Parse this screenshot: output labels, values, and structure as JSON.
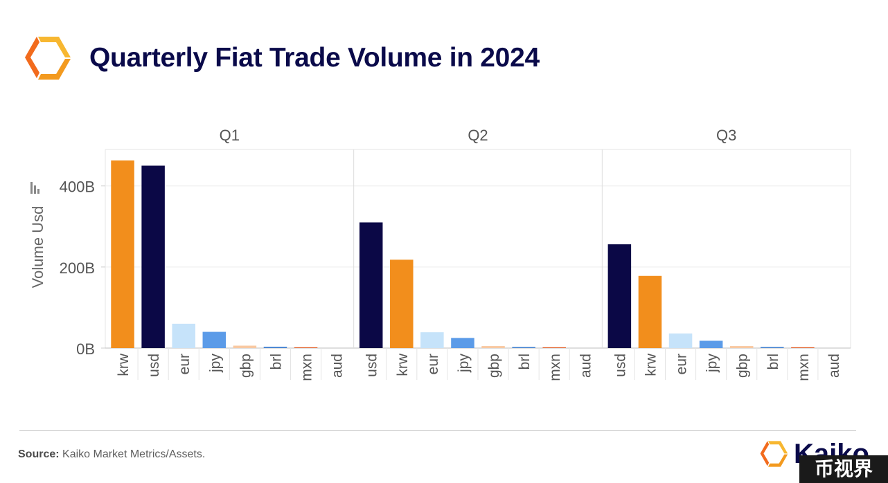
{
  "header": {
    "title": "Quarterly Fiat Trade Volume in 2024"
  },
  "footer": {
    "source_label": "Source:",
    "source_text": "Kaiko Market Metrics/Assets."
  },
  "brand": {
    "name": "Kaiko",
    "watermark": "币视界"
  },
  "colors": {
    "krw": "#f28e1c",
    "usd": "#0b0846",
    "eur": "#c6e3fa",
    "jpy": "#5b9be8",
    "gbp": "#f8c9a2",
    "brl": "#3f7fd0",
    "mxn": "#e2622c",
    "aud": "#c0c0c0",
    "title": "#0a0a4a",
    "brand_orange": "#f39a1f"
  },
  "chart_data": {
    "type": "bar",
    "title": "Quarterly Fiat Trade Volume in 2024",
    "ylabel": "Volume Usd",
    "xlabel": "",
    "ylim": [
      0,
      490
    ],
    "yticks": [
      0,
      200,
      400
    ],
    "ytick_labels": [
      "0B",
      "200B",
      "400B"
    ],
    "grid": true,
    "unit": "B",
    "panels": [
      {
        "name": "Q1",
        "categories": [
          "krw",
          "usd",
          "eur",
          "jpy",
          "gbp",
          "brl",
          "mxn",
          "aud"
        ],
        "values": [
          463,
          450,
          60,
          40,
          6,
          3,
          2,
          0.5
        ]
      },
      {
        "name": "Q2",
        "categories": [
          "usd",
          "krw",
          "eur",
          "jpy",
          "gbp",
          "brl",
          "mxn",
          "aud"
        ],
        "values": [
          310,
          218,
          39,
          25,
          5,
          2.5,
          2,
          0.5
        ]
      },
      {
        "name": "Q3",
        "categories": [
          "usd",
          "krw",
          "eur",
          "jpy",
          "gbp",
          "brl",
          "mxn",
          "aud"
        ],
        "values": [
          256,
          178,
          36,
          18,
          5,
          2.5,
          2,
          0.5
        ]
      }
    ]
  }
}
